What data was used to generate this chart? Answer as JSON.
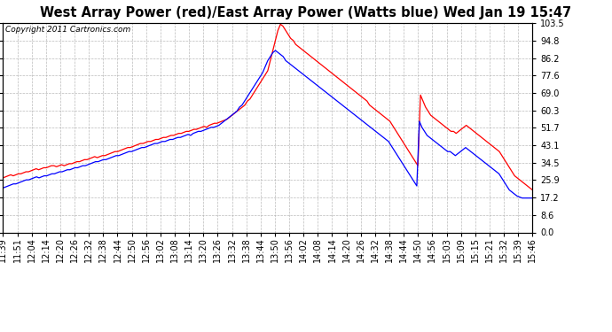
{
  "title": "West Array Power (red)/East Array Power (Watts blue) Wed Jan 19 15:47",
  "copyright": "Copyright 2011 Cartronics.com",
  "yticks": [
    0.0,
    8.6,
    17.2,
    25.9,
    34.5,
    43.1,
    51.7,
    60.3,
    69.0,
    77.6,
    86.2,
    94.8,
    103.5
  ],
  "xtick_labels": [
    "11:39",
    "11:51",
    "12:04",
    "12:14",
    "12:20",
    "12:26",
    "12:32",
    "12:38",
    "12:44",
    "12:50",
    "12:56",
    "13:02",
    "13:08",
    "13:14",
    "13:20",
    "13:26",
    "13:32",
    "13:38",
    "13:44",
    "13:50",
    "13:56",
    "14:02",
    "14:08",
    "14:14",
    "14:20",
    "14:26",
    "14:32",
    "14:38",
    "14:44",
    "14:50",
    "14:56",
    "15:03",
    "15:09",
    "15:15",
    "15:21",
    "15:32",
    "15:39",
    "15:46"
  ],
  "bg_color": "#ffffff",
  "plot_bg_color": "#ffffff",
  "grid_color": "#aaaaaa",
  "red_color": "#ff0000",
  "blue_color": "#0000ff",
  "title_fontsize": 10.5,
  "copyright_fontsize": 6.5,
  "tick_fontsize": 7,
  "ylim": [
    0.0,
    103.5
  ],
  "red_data": [
    27,
    27.5,
    28,
    28.5,
    28,
    28.5,
    29,
    29,
    29.5,
    30,
    30,
    30.5,
    31,
    31.5,
    31,
    31.5,
    32,
    32,
    32.5,
    33,
    33,
    32.5,
    33,
    33.5,
    33,
    33.5,
    34,
    34,
    34.5,
    35,
    35,
    35.5,
    36,
    36,
    36.5,
    37,
    37.5,
    37,
    37.5,
    38,
    38,
    38.5,
    39,
    39.5,
    40,
    40,
    40.5,
    41,
    41.5,
    42,
    42,
    42.5,
    43,
    43.5,
    44,
    44,
    44.5,
    45,
    45,
    45.5,
    46,
    46,
    46.5,
    47,
    47,
    47.5,
    48,
    48,
    48.5,
    49,
    49,
    49.5,
    50,
    50,
    50.5,
    51,
    51,
    51.5,
    52,
    52.5,
    52,
    53,
    53.5,
    54,
    54,
    54.5,
    55,
    55.5,
    56,
    57,
    58,
    59,
    60,
    61,
    62,
    63,
    65,
    66,
    68,
    70,
    72,
    74,
    76,
    78,
    80,
    85,
    90,
    95,
    100,
    103,
    102,
    100,
    98,
    96,
    95,
    93,
    92,
    91,
    90,
    89,
    88,
    87,
    86,
    85,
    84,
    83,
    82,
    81,
    80,
    79,
    78,
    77,
    76,
    75,
    74,
    73,
    72,
    71,
    70,
    69,
    68,
    67,
    66,
    65,
    63,
    62,
    61,
    60,
    59,
    58,
    57,
    56,
    55,
    53,
    51,
    49,
    47,
    45,
    43,
    41,
    39,
    37,
    35,
    33,
    68,
    65,
    62,
    60,
    58,
    57,
    56,
    55,
    54,
    53,
    52,
    51,
    50,
    50,
    49,
    50,
    51,
    52,
    53,
    52,
    51,
    50,
    49,
    48,
    47,
    46,
    45,
    44,
    43,
    42,
    41,
    40,
    38,
    36,
    34,
    32,
    30,
    28,
    27,
    26,
    25,
    24,
    23,
    22,
    21
  ],
  "blue_data": [
    22,
    22.5,
    23,
    23.5,
    24,
    24,
    24.5,
    25,
    25.5,
    26,
    26,
    26.5,
    27,
    27.5,
    27,
    27.5,
    28,
    28,
    28.5,
    29,
    29,
    29.5,
    30,
    30,
    30.5,
    31,
    31,
    31.5,
    32,
    32,
    32.5,
    33,
    33,
    33.5,
    34,
    34.5,
    35,
    35,
    35.5,
    36,
    36,
    36.5,
    37,
    37.5,
    38,
    38,
    38.5,
    39,
    39.5,
    40,
    40,
    40.5,
    41,
    41.5,
    42,
    42,
    42.5,
    43,
    43.5,
    44,
    44,
    44.5,
    45,
    45,
    45.5,
    46,
    46,
    46.5,
    47,
    47,
    47.5,
    48,
    48.5,
    48,
    49,
    49.5,
    50,
    50,
    50.5,
    51,
    51.5,
    52,
    52,
    52.5,
    53,
    54,
    55,
    56,
    57,
    58,
    59,
    60,
    62,
    63,
    65,
    67,
    69,
    71,
    73,
    75,
    77,
    79,
    82,
    85,
    87,
    89,
    90,
    89,
    88,
    87,
    85,
    84,
    83,
    82,
    81,
    80,
    79,
    78,
    77,
    76,
    75,
    74,
    73,
    72,
    71,
    70,
    69,
    68,
    67,
    66,
    65,
    64,
    63,
    62,
    61,
    60,
    59,
    58,
    57,
    56,
    55,
    54,
    53,
    52,
    51,
    50,
    49,
    48,
    47,
    46,
    45,
    43,
    41,
    39,
    37,
    35,
    33,
    31,
    29,
    27,
    25,
    23,
    55,
    52,
    50,
    48,
    47,
    46,
    45,
    44,
    43,
    42,
    41,
    40,
    40,
    39,
    38,
    39,
    40,
    41,
    42,
    41,
    40,
    39,
    38,
    37,
    36,
    35,
    34,
    33,
    32,
    31,
    30,
    29,
    27,
    25,
    23,
    21,
    20,
    19,
    18,
    17.5,
    17,
    17,
    17,
    17,
    17
  ]
}
